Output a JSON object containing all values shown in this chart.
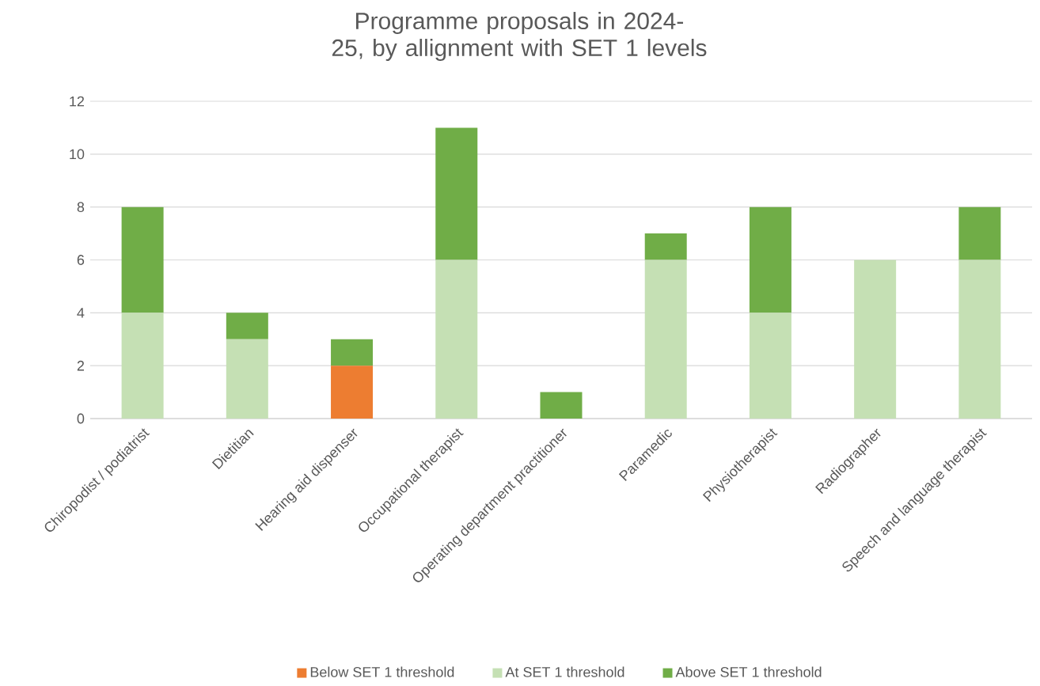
{
  "chart_data": {
    "type": "bar",
    "title": "Programme proposals in 2024-25, by allignment with SET 1 levels",
    "categories": [
      "Chiropodist / podiatrist",
      "Dietitian",
      "Hearing aid dispenser",
      "Occupational therapist",
      "Operating department practitioner",
      "Paramedic",
      "Physiotherapist",
      "Radiographer",
      "Speech and language therapist"
    ],
    "stacked": true,
    "series": [
      {
        "name": "Below SET 1 threshold",
        "color": "#ed7d31",
        "values": [
          0,
          0,
          2,
          0,
          0,
          0,
          0,
          0,
          0
        ]
      },
      {
        "name": "At SET 1 threshold",
        "color": "#c5e0b4",
        "values": [
          4,
          3,
          0,
          6,
          0,
          6,
          4,
          6,
          6
        ]
      },
      {
        "name": "Above SET 1 threshold",
        "color": "#70ad47",
        "values": [
          4,
          1,
          1,
          5,
          1,
          1,
          4,
          0,
          2
        ]
      }
    ],
    "ylim": [
      0,
      12
    ],
    "yticks": [
      0,
      2,
      4,
      6,
      8,
      10,
      12
    ],
    "grid": "y",
    "legend": "bottom"
  }
}
